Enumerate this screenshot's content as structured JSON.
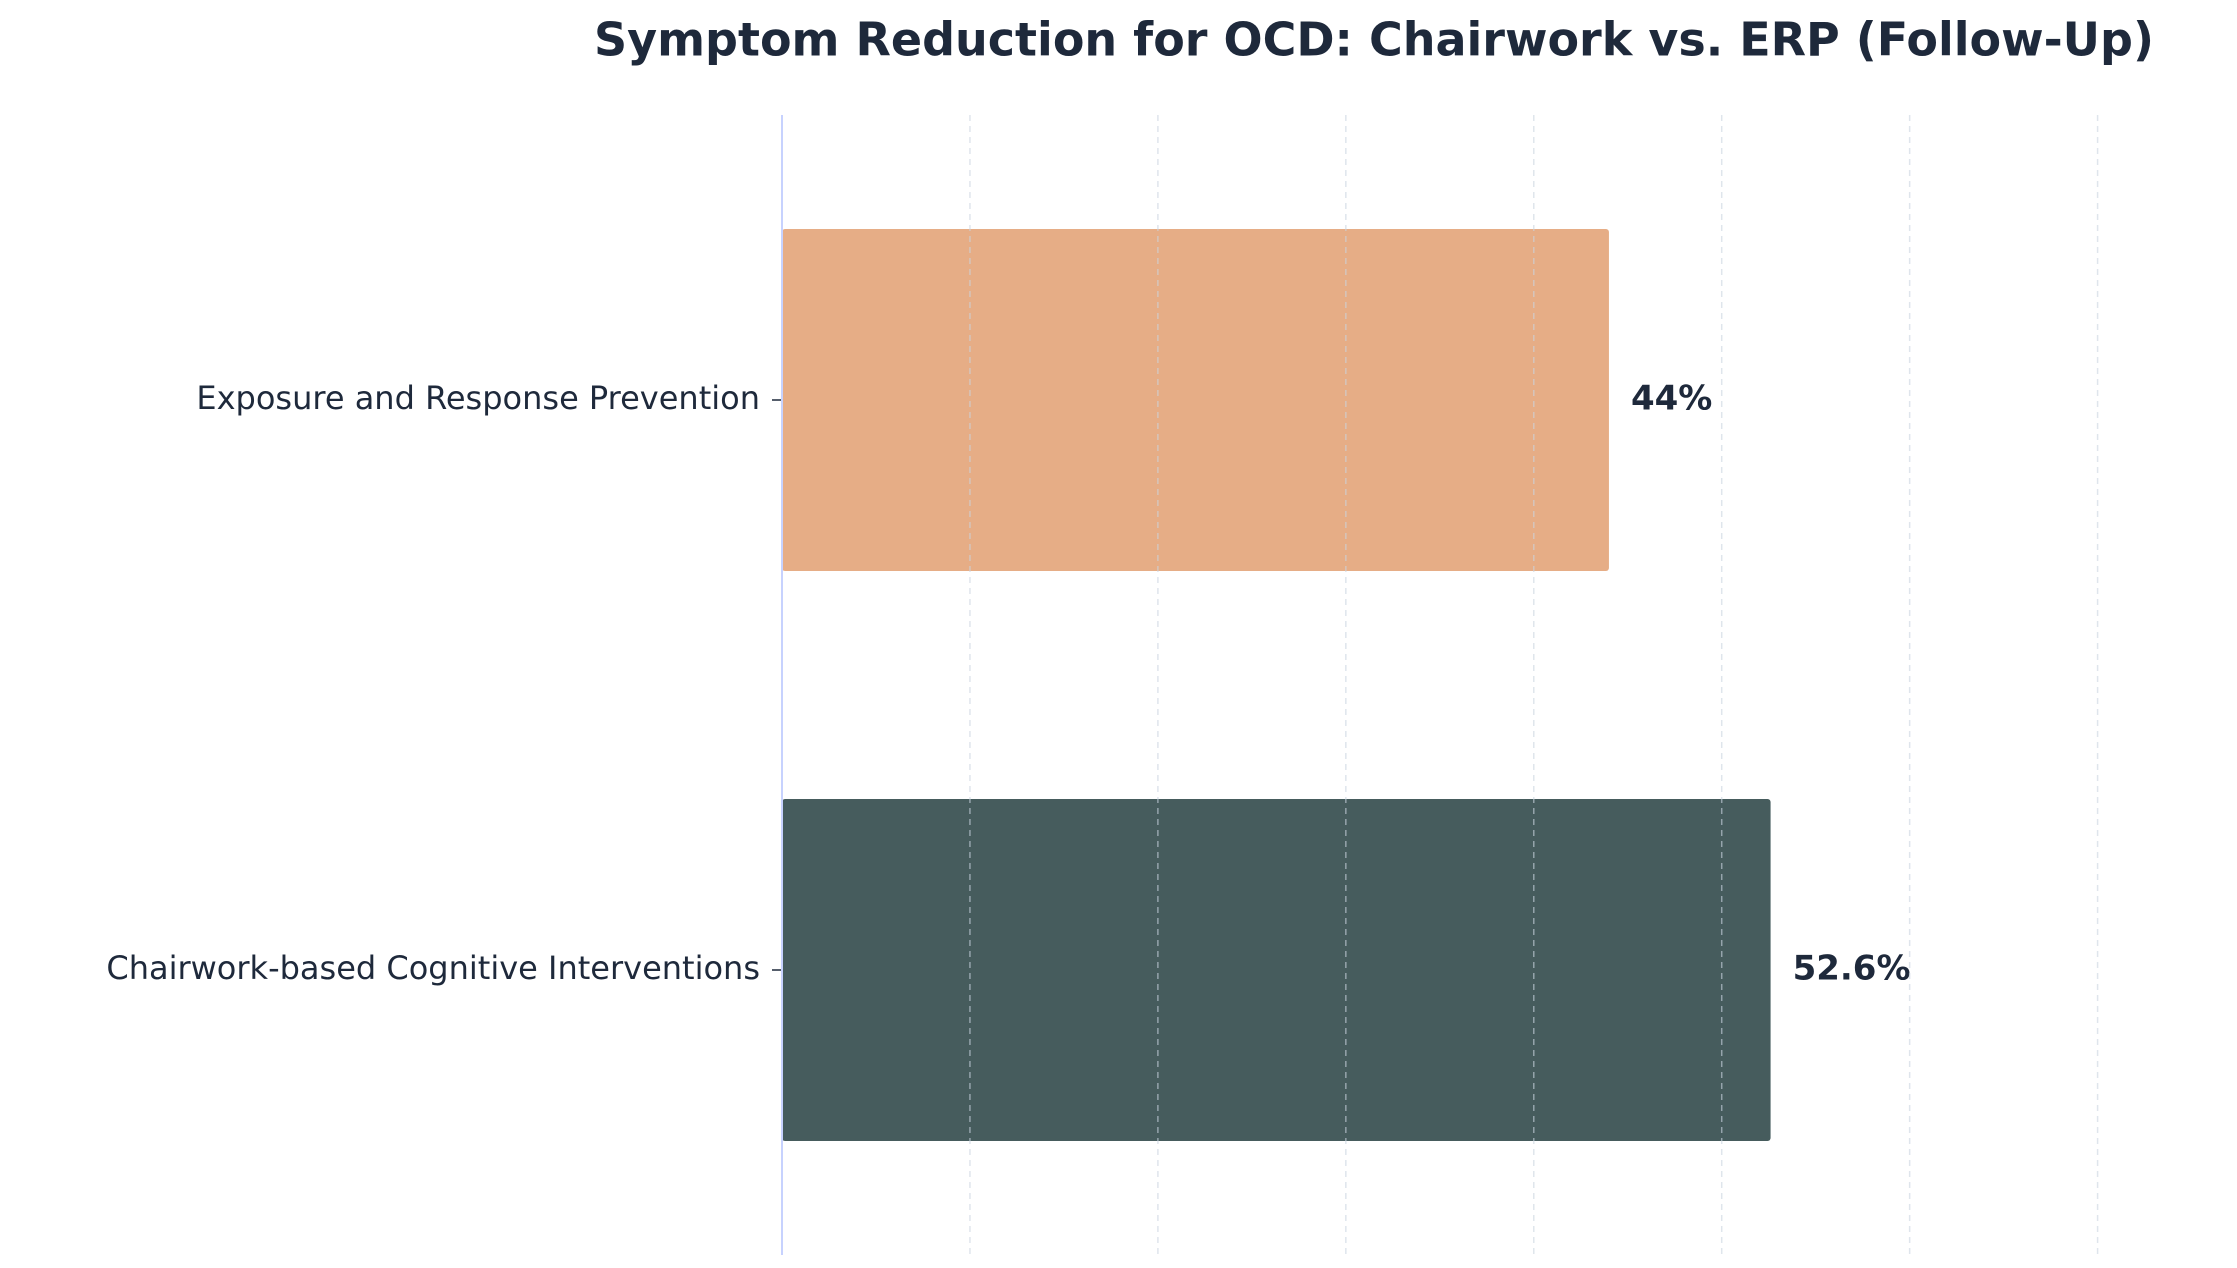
{
  "chart_data": {
    "type": "barh",
    "title": "Symptom Reduction for OCD: Chairwork vs. ERP (Follow-Up)",
    "categories": [
      "Exposure and Response Prevention",
      "Chairwork-based Cognitive Interventions"
    ],
    "values": [
      44,
      52.6
    ],
    "value_labels": [
      "44%",
      "52.6%"
    ],
    "colors": [
      "#e6ad86",
      "#465c5d"
    ],
    "xlim": [
      0,
      76.3
    ],
    "xticks": [
      0,
      10,
      20,
      30,
      40,
      50,
      60,
      70
    ],
    "grid": true
  }
}
